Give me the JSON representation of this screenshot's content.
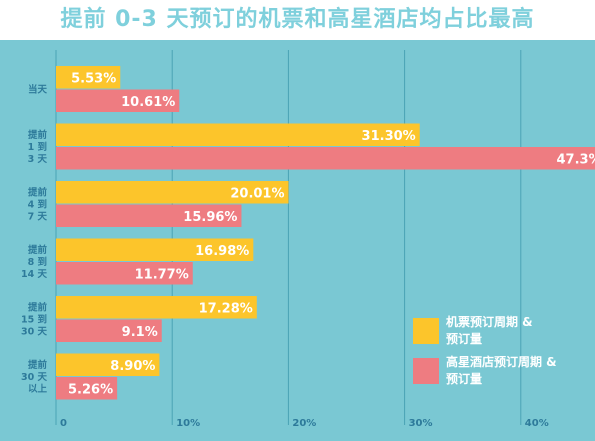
{
  "chart_data": {
    "type": "bar",
    "orientation": "horizontal",
    "title": "提前 0-3 天预订的机票和高星酒店均占比最高",
    "xlabel": "",
    "ylabel": "",
    "xlim": [
      0,
      50
    ],
    "grid": true,
    "legend_position": "bottom-right",
    "x_ticks": [
      "0",
      "10%",
      "20%",
      "30%",
      "40%"
    ],
    "x_tick_values": [
      0,
      10,
      20,
      30,
      40
    ],
    "categories": [
      [
        "当天"
      ],
      [
        "提前",
        "1 到",
        "3 天"
      ],
      [
        "提前",
        "4 到",
        "7 天"
      ],
      [
        "提前",
        "8 到",
        "14 天"
      ],
      [
        "提前",
        "15 到",
        "30 天"
      ],
      [
        "提前",
        "30 天",
        "以上"
      ]
    ],
    "series": [
      {
        "name": "机票预订周期 & 预订量",
        "name_lines": [
          "机票预订周期 &",
          "预订量"
        ],
        "color": "#fcc52b",
        "values": [
          5.53,
          31.3,
          20.01,
          16.98,
          17.28,
          8.9
        ],
        "labels": [
          "5.53%",
          "31.30%",
          "20.01%",
          "16.98%",
          "17.28%",
          "8.90%"
        ]
      },
      {
        "name": "高星酒店预订周期 & 预订量",
        "name_lines": [
          "高星酒店预订周期 &",
          "预订量"
        ],
        "color": "#ee7c81",
        "values": [
          10.61,
          47.3,
          15.96,
          11.77,
          9.1,
          5.26
        ],
        "labels": [
          "10.61%",
          "47.3%",
          "15.96%",
          "11.77%",
          "9.1%",
          "5.26%"
        ]
      }
    ]
  },
  "colors": {
    "panel": "#7ac8d3",
    "title": "#7fd0dc",
    "axis_text": "#2d7a9a",
    "grid": "#4aa3b4"
  }
}
